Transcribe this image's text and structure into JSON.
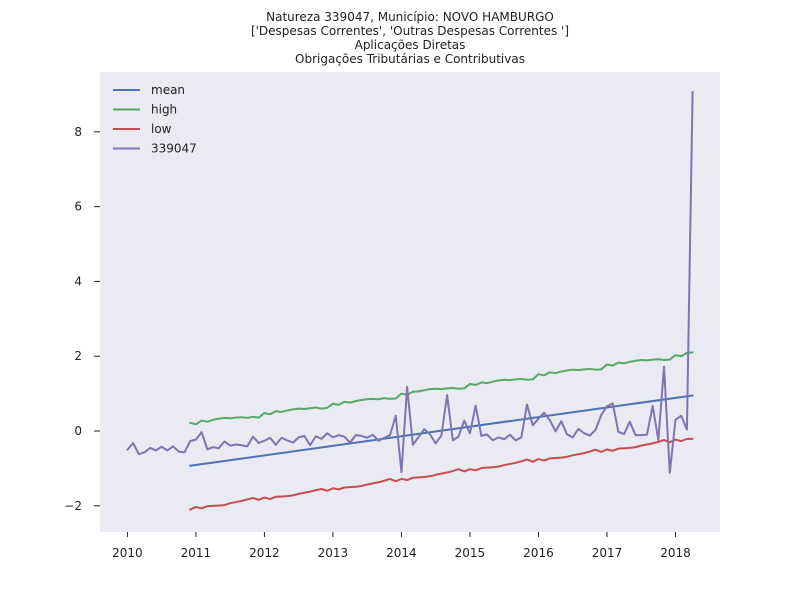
{
  "chart_data": {
    "type": "line",
    "title_lines": [
      "Natureza 339047, Município: NOVO HAMBURGO",
      "['Despesas Correntes', 'Outras Despesas Correntes ']",
      "Aplicações Diretas",
      "Obrigações Tributárias e Contributivas"
    ],
    "xlabel": "",
    "ylabel": "",
    "xlim": [
      2009.6,
      2018.65
    ],
    "ylim": [
      -2.7,
      9.6
    ],
    "x_ticks": [
      2010,
      2011,
      2012,
      2013,
      2014,
      2015,
      2016,
      2017,
      2018
    ],
    "x_tick_labels": [
      "2010",
      "2011",
      "2012",
      "2013",
      "2014",
      "2015",
      "2016",
      "2017",
      "2018"
    ],
    "y_ticks": [
      -2,
      0,
      2,
      4,
      6,
      8
    ],
    "y_tick_labels": [
      "−2",
      "0",
      "2",
      "4",
      "6",
      "8"
    ],
    "grid": false,
    "background": "#eaeaf2",
    "legend_position": "top-left",
    "series": [
      {
        "name": "mean",
        "color": "#4c72b0",
        "x": [
          2010.917,
          2018.25
        ],
        "y": [
          -0.93,
          0.95
        ]
      },
      {
        "name": "high",
        "color": "#55a868",
        "x": [
          2010.917,
          2011.0,
          2011.083,
          2011.167,
          2011.25,
          2011.333,
          2011.417,
          2011.5,
          2011.583,
          2011.667,
          2011.75,
          2011.833,
          2011.917,
          2012.0,
          2012.083,
          2012.167,
          2012.25,
          2012.333,
          2012.417,
          2012.5,
          2012.583,
          2012.667,
          2012.75,
          2012.833,
          2012.917,
          2013.0,
          2013.083,
          2013.167,
          2013.25,
          2013.333,
          2013.417,
          2013.5,
          2013.583,
          2013.667,
          2013.75,
          2013.833,
          2013.917,
          2014.0,
          2014.083,
          2014.167,
          2014.25,
          2014.333,
          2014.417,
          2014.5,
          2014.583,
          2014.667,
          2014.75,
          2014.833,
          2014.917,
          2015.0,
          2015.083,
          2015.167,
          2015.25,
          2015.333,
          2015.417,
          2015.5,
          2015.583,
          2015.667,
          2015.75,
          2015.833,
          2015.917,
          2016.0,
          2016.083,
          2016.167,
          2016.25,
          2016.333,
          2016.417,
          2016.5,
          2016.583,
          2016.667,
          2016.75,
          2016.833,
          2016.917,
          2017.0,
          2017.083,
          2017.167,
          2017.25,
          2017.333,
          2017.417,
          2017.5,
          2017.583,
          2017.667,
          2017.75,
          2017.833,
          2017.917,
          2018.0,
          2018.083,
          2018.167,
          2018.25
        ],
        "y": [
          0.22,
          0.18,
          0.28,
          0.25,
          0.3,
          0.33,
          0.35,
          0.34,
          0.36,
          0.37,
          0.35,
          0.38,
          0.36,
          0.48,
          0.45,
          0.53,
          0.51,
          0.55,
          0.58,
          0.6,
          0.59,
          0.61,
          0.63,
          0.6,
          0.62,
          0.73,
          0.7,
          0.78,
          0.76,
          0.8,
          0.83,
          0.85,
          0.86,
          0.85,
          0.88,
          0.86,
          0.87,
          1.0,
          0.97,
          1.05,
          1.06,
          1.09,
          1.12,
          1.13,
          1.12,
          1.14,
          1.15,
          1.13,
          1.14,
          1.26,
          1.23,
          1.3,
          1.28,
          1.32,
          1.35,
          1.37,
          1.36,
          1.38,
          1.39,
          1.37,
          1.38,
          1.52,
          1.49,
          1.57,
          1.55,
          1.59,
          1.62,
          1.64,
          1.63,
          1.65,
          1.66,
          1.64,
          1.65,
          1.78,
          1.75,
          1.83,
          1.81,
          1.85,
          1.88,
          1.9,
          1.89,
          1.91,
          1.92,
          1.9,
          1.91,
          2.03,
          2.0,
          2.09,
          2.1
        ]
      },
      {
        "name": "low",
        "color": "#c44e52",
        "x": [
          2010.917,
          2011.0,
          2011.083,
          2011.167,
          2011.25,
          2011.333,
          2011.417,
          2011.5,
          2011.583,
          2011.667,
          2011.75,
          2011.833,
          2011.917,
          2012.0,
          2012.083,
          2012.167,
          2012.25,
          2012.333,
          2012.417,
          2012.5,
          2012.583,
          2012.667,
          2012.75,
          2012.833,
          2012.917,
          2013.0,
          2013.083,
          2013.167,
          2013.25,
          2013.333,
          2013.417,
          2013.5,
          2013.583,
          2013.667,
          2013.75,
          2013.833,
          2013.917,
          2014.0,
          2014.083,
          2014.167,
          2014.25,
          2014.333,
          2014.417,
          2014.5,
          2014.583,
          2014.667,
          2014.75,
          2014.833,
          2014.917,
          2015.0,
          2015.083,
          2015.167,
          2015.25,
          2015.333,
          2015.417,
          2015.5,
          2015.583,
          2015.667,
          2015.75,
          2015.833,
          2015.917,
          2016.0,
          2016.083,
          2016.167,
          2016.25,
          2016.333,
          2016.417,
          2016.5,
          2016.583,
          2016.667,
          2016.75,
          2016.833,
          2016.917,
          2017.0,
          2017.083,
          2017.167,
          2017.25,
          2017.333,
          2017.417,
          2017.5,
          2017.583,
          2017.667,
          2017.75,
          2017.833,
          2017.917,
          2018.0,
          2018.083,
          2018.167,
          2018.25
        ],
        "y": [
          -2.1,
          -2.03,
          -2.07,
          -2.01,
          -2.0,
          -1.99,
          -1.98,
          -1.93,
          -1.9,
          -1.87,
          -1.83,
          -1.79,
          -1.84,
          -1.78,
          -1.82,
          -1.76,
          -1.75,
          -1.74,
          -1.72,
          -1.68,
          -1.65,
          -1.62,
          -1.58,
          -1.55,
          -1.6,
          -1.53,
          -1.56,
          -1.51,
          -1.5,
          -1.49,
          -1.47,
          -1.43,
          -1.4,
          -1.37,
          -1.33,
          -1.28,
          -1.34,
          -1.28,
          -1.31,
          -1.25,
          -1.24,
          -1.23,
          -1.21,
          -1.17,
          -1.14,
          -1.11,
          -1.07,
          -1.02,
          -1.08,
          -1.02,
          -1.05,
          -0.99,
          -0.98,
          -0.97,
          -0.95,
          -0.91,
          -0.88,
          -0.85,
          -0.81,
          -0.76,
          -0.82,
          -0.75,
          -0.79,
          -0.73,
          -0.72,
          -0.71,
          -0.69,
          -0.65,
          -0.62,
          -0.59,
          -0.55,
          -0.5,
          -0.56,
          -0.49,
          -0.53,
          -0.47,
          -0.46,
          -0.45,
          -0.43,
          -0.39,
          -0.36,
          -0.33,
          -0.29,
          -0.24,
          -0.3,
          -0.23,
          -0.27,
          -0.21,
          -0.21
        ]
      },
      {
        "name": "339047",
        "color": "#8172b2",
        "x": [
          2010.0,
          2010.083,
          2010.167,
          2010.25,
          2010.333,
          2010.417,
          2010.5,
          2010.583,
          2010.667,
          2010.75,
          2010.833,
          2010.917,
          2011.0,
          2011.083,
          2011.167,
          2011.25,
          2011.333,
          2011.417,
          2011.5,
          2011.583,
          2011.667,
          2011.75,
          2011.833,
          2011.917,
          2012.0,
          2012.083,
          2012.167,
          2012.25,
          2012.333,
          2012.417,
          2012.5,
          2012.583,
          2012.667,
          2012.75,
          2012.833,
          2012.917,
          2013.0,
          2013.083,
          2013.167,
          2013.25,
          2013.333,
          2013.417,
          2013.5,
          2013.583,
          2013.667,
          2013.75,
          2013.833,
          2013.917,
          2014.0,
          2014.083,
          2014.167,
          2014.25,
          2014.333,
          2014.417,
          2014.5,
          2014.583,
          2014.667,
          2014.75,
          2014.833,
          2014.917,
          2015.0,
          2015.083,
          2015.167,
          2015.25,
          2015.333,
          2015.417,
          2015.5,
          2015.583,
          2015.667,
          2015.75,
          2015.833,
          2015.917,
          2016.0,
          2016.083,
          2016.167,
          2016.25,
          2016.333,
          2016.417,
          2016.5,
          2016.583,
          2016.667,
          2016.75,
          2016.833,
          2016.917,
          2017.0,
          2017.083,
          2017.167,
          2017.25,
          2017.333,
          2017.417,
          2017.5,
          2017.583,
          2017.667,
          2017.75,
          2017.833,
          2017.917,
          2018.0,
          2018.083,
          2018.167,
          2018.25
        ],
        "y": [
          -0.5,
          -0.32,
          -0.62,
          -0.57,
          -0.45,
          -0.52,
          -0.42,
          -0.52,
          -0.41,
          -0.55,
          -0.57,
          -0.27,
          -0.23,
          -0.03,
          -0.49,
          -0.43,
          -0.46,
          -0.28,
          -0.39,
          -0.36,
          -0.38,
          -0.41,
          -0.15,
          -0.32,
          -0.26,
          -0.18,
          -0.37,
          -0.18,
          -0.25,
          -0.31,
          -0.17,
          -0.13,
          -0.38,
          -0.14,
          -0.21,
          -0.06,
          -0.17,
          -0.11,
          -0.15,
          -0.31,
          -0.11,
          -0.13,
          -0.18,
          -0.1,
          -0.26,
          -0.18,
          -0.11,
          0.41,
          -1.1,
          1.18,
          -0.37,
          -0.16,
          0.05,
          -0.09,
          -0.33,
          -0.12,
          0.96,
          -0.25,
          -0.15,
          0.28,
          -0.06,
          0.68,
          -0.13,
          -0.09,
          -0.25,
          -0.17,
          -0.22,
          -0.1,
          -0.25,
          -0.17,
          0.71,
          0.15,
          0.33,
          0.49,
          0.29,
          -0.01,
          0.26,
          -0.09,
          -0.17,
          0.06,
          -0.06,
          -0.12,
          0.03,
          0.43,
          0.66,
          0.74,
          -0.02,
          -0.08,
          0.25,
          -0.11,
          -0.11,
          -0.1,
          0.67,
          -0.24,
          1.72,
          -1.12,
          0.3,
          0.41,
          0.04,
          9.07
        ]
      }
    ]
  }
}
